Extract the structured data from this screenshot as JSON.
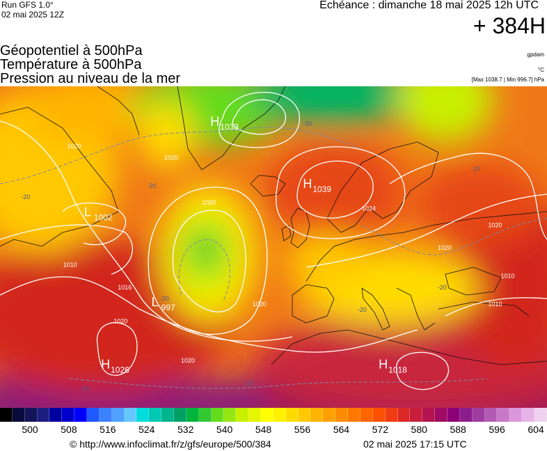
{
  "header": {
    "run_label": "Run GFS 1.0°",
    "run_date": "02 mai 2025 12Z",
    "valid_time": "Echéance : dimanche 18 mai 2025 12h UTC",
    "forecast_hour": "+ 384H"
  },
  "titles": {
    "line1": "Géopotentiel à 500hPa",
    "line2": "Température à 500hPa",
    "line3": "Pression au niveau de la mer"
  },
  "units": {
    "geopotential": "gpdam",
    "temperature": "°C",
    "pressure_minmax": "[Max 1038.7 | Min 996.7] hPa"
  },
  "pressure_centers": [
    {
      "type": "H",
      "value": "1033",
      "lon": -30,
      "lat": 70
    },
    {
      "type": "H",
      "value": "1039",
      "lon": -8,
      "lat": 59
    },
    {
      "type": "L",
      "value": "1002",
      "lon": -60,
      "lat": 54
    },
    {
      "type": "L",
      "value": "997",
      "lon": -44,
      "lat": 38
    },
    {
      "type": "H",
      "value": "1026",
      "lon": -56,
      "lat": 27
    },
    {
      "type": "H",
      "value": "1018",
      "lon": 10,
      "lat": 27
    }
  ],
  "isobar_labels": [
    {
      "value": "1020",
      "lon": -64,
      "lat": 66
    },
    {
      "value": "1020",
      "lon": -41,
      "lat": 64
    },
    {
      "value": "1020",
      "lon": -32,
      "lat": 56
    },
    {
      "value": "1020",
      "lon": 24,
      "lat": 48
    },
    {
      "value": "1020",
      "lon": 36,
      "lat": 52
    },
    {
      "value": "1020",
      "lon": -53,
      "lat": 35
    },
    {
      "value": "1020",
      "lon": -37,
      "lat": 28
    },
    {
      "value": "1020",
      "lon": -20,
      "lat": 38
    },
    {
      "value": "1010",
      "lon": -65,
      "lat": 45
    },
    {
      "value": "1010",
      "lon": 39,
      "lat": 43
    },
    {
      "value": "1010",
      "lon": 36,
      "lat": 38
    },
    {
      "value": "1016",
      "lon": -52,
      "lat": 41
    },
    {
      "value": "1024",
      "lon": 6,
      "lat": 55
    }
  ],
  "temperature_labels": [
    {
      "value": "-30",
      "lon": -8,
      "lat": 70
    },
    {
      "value": "-20",
      "lon": -75,
      "lat": 57
    },
    {
      "value": "-20",
      "lon": -45,
      "lat": 59
    },
    {
      "value": "-20",
      "lon": -42,
      "lat": 39
    },
    {
      "value": "-20",
      "lon": 5,
      "lat": 37
    },
    {
      "value": "-20",
      "lon": 24,
      "lat": 41
    },
    {
      "value": "-20",
      "lon": 32,
      "lat": 62
    },
    {
      "value": "-10",
      "lon": -22,
      "lat": 24
    },
    {
      "value": "-10",
      "lon": -61,
      "lat": 23
    }
  ],
  "colorbar": {
    "ticks": [
      "500",
      "508",
      "516",
      "524",
      "532",
      "540",
      "548",
      "556",
      "564",
      "572",
      "580",
      "588",
      "596",
      "604"
    ],
    "colors": [
      "#000000",
      "#0a0a3c",
      "#14145a",
      "#1e1e82",
      "#0000a0",
      "#0000cd",
      "#0000ff",
      "#1e5aff",
      "#3c82ff",
      "#50a0ff",
      "#64c8ff",
      "#00dcdc",
      "#00c8b4",
      "#00b48c",
      "#00a064",
      "#00b43c",
      "#32c832",
      "#64dc1e",
      "#96e614",
      "#c8f000",
      "#e6f500",
      "#ffff00",
      "#fff000",
      "#ffdc00",
      "#ffc800",
      "#ffb400",
      "#ffa000",
      "#ff8c00",
      "#ff7800",
      "#ff6400",
      "#ff5000",
      "#f03c14",
      "#dc2828",
      "#c81e3c",
      "#b41450",
      "#a00a64",
      "#8c0078",
      "#8c1e8c",
      "#a03ca0",
      "#b45ab4",
      "#c878c8",
      "#dc96dc",
      "#e6b4e6",
      "#f0d2f0"
    ]
  },
  "footer": {
    "source": "© http://www.infoclimat.fr/z/gfs/europe/500/384",
    "issued": "02 mai 2025 17:15 UTC"
  }
}
